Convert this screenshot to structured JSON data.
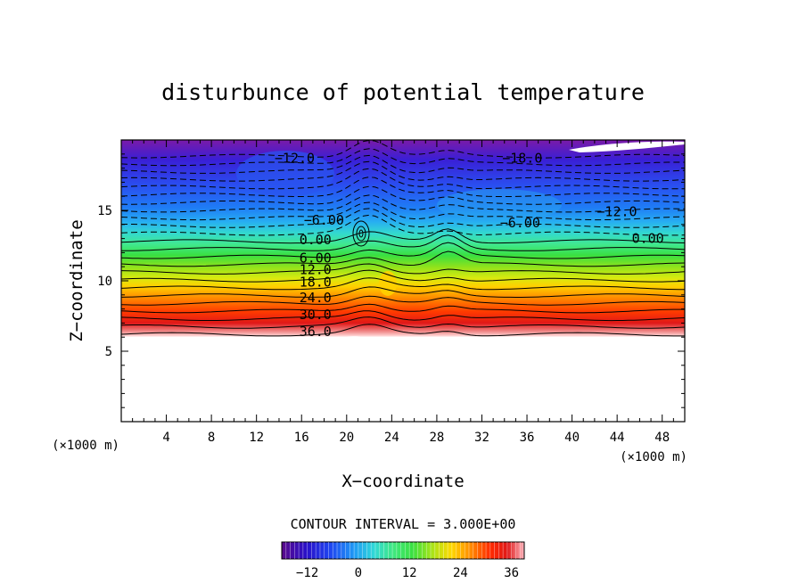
{
  "chart_data": {
    "type": "heatmap",
    "title": "disturbunce of potential temperature",
    "xlabel": "X−coordinate",
    "ylabel": "Z−coordinate",
    "x_unit_left": "(×1000 m)",
    "x_unit_right": "(×1000 m)",
    "xlim": [
      0,
      50
    ],
    "ylim": [
      0,
      20
    ],
    "x_ticks": [
      4,
      8,
      12,
      16,
      20,
      24,
      28,
      32,
      36,
      40,
      44,
      48
    ],
    "x_tick_labels": [
      "4",
      "8",
      "12",
      "16",
      "20",
      "24",
      "28",
      "32",
      "36",
      "40",
      "44",
      "48"
    ],
    "y_ticks": [
      5,
      10,
      15
    ],
    "y_tick_labels": [
      "5",
      "10",
      "15"
    ],
    "grid": false,
    "contour_interval_text": "CONTOUR INTERVAL = 3.000E+00",
    "colorbar": {
      "min": -18,
      "max": 39,
      "ticks": [
        -12,
        0,
        12,
        24,
        36
      ],
      "tick_labels": [
        "−12",
        "0",
        "12",
        "24",
        "36"
      ]
    },
    "contours": [
      {
        "value": -12,
        "label": "−12.0",
        "dashed": true,
        "z": 17.8,
        "lx": 13.6,
        "lz": 18.7
      },
      {
        "value": -18,
        "label": "−18.0",
        "dashed": true,
        "z": 18.9,
        "lx": 33.8,
        "lz": 18.7
      },
      {
        "value": -12,
        "label": "−12.0",
        "dashed": true,
        "z": 15.0,
        "lx": 42.2,
        "lz": 14.9
      },
      {
        "value": -6,
        "label": "−6.00",
        "dashed": true,
        "z": 14.0,
        "lx": 16.2,
        "lz": 14.3
      },
      {
        "value": -6,
        "label": "−6.00",
        "dashed": true,
        "z": 14.0,
        "lx": 33.6,
        "lz": 14.1
      },
      {
        "value": 0,
        "label": "0.00",
        "dashed": false,
        "z": 12.9,
        "lx": 15.8,
        "lz": 12.9
      },
      {
        "value": 0,
        "label": "0.00",
        "dashed": false,
        "z": 12.9,
        "lx": 45.3,
        "lz": 13.0
      },
      {
        "value": 6,
        "label": "6.00",
        "dashed": false,
        "z": 11.6,
        "lx": 15.8,
        "lz": 11.6
      },
      {
        "value": 12,
        "label": "12.0",
        "dashed": false,
        "z": 10.9,
        "lx": 15.8,
        "lz": 10.8
      },
      {
        "value": 18,
        "label": "18.0",
        "dashed": false,
        "z": 9.9,
        "lx": 15.8,
        "lz": 9.9
      },
      {
        "value": 24,
        "label": "24.0",
        "dashed": false,
        "z": 8.8,
        "lx": 15.8,
        "lz": 8.8
      },
      {
        "value": 30,
        "label": "30.0",
        "dashed": false,
        "z": 7.6,
        "lx": 15.8,
        "lz": 7.6
      },
      {
        "value": 36,
        "label": "36.0",
        "dashed": false,
        "z": 6.4,
        "lx": 15.8,
        "lz": 6.4
      }
    ]
  }
}
